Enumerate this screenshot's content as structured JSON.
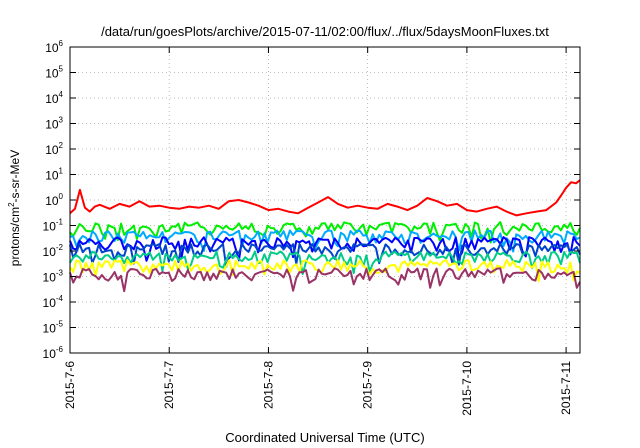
{
  "chart_data": {
    "type": "line",
    "title": "/data/run/goesPlots/archive/2015-07-11/02:00/flux/../flux/5daysMoonFluxes.txt",
    "xlabel": "Coordinated Universal Time (UTC)",
    "ylabel_parts": [
      "protons/cm",
      "2",
      "-s-sr-MeV"
    ],
    "y_scale": "log",
    "ylim": [
      1e-06,
      1000000.0
    ],
    "y_ticks": [
      {
        "value": 1e-06,
        "base": "10",
        "exp": "-6"
      },
      {
        "value": 1e-05,
        "base": "10",
        "exp": "-5"
      },
      {
        "value": 0.0001,
        "base": "10",
        "exp": "-4"
      },
      {
        "value": 0.001,
        "base": "10",
        "exp": "-3"
      },
      {
        "value": 0.01,
        "base": "10",
        "exp": "-2"
      },
      {
        "value": 0.1,
        "base": "10",
        "exp": "-1"
      },
      {
        "value": 1,
        "base": "10",
        "exp": "0"
      },
      {
        "value": 10,
        "base": "10",
        "exp": "1"
      },
      {
        "value": 100,
        "base": "10",
        "exp": "2"
      },
      {
        "value": 1000,
        "base": "10",
        "exp": "3"
      },
      {
        "value": 10000,
        "base": "10",
        "exp": "4"
      },
      {
        "value": 100000,
        "base": "10",
        "exp": "5"
      },
      {
        "value": 1000000,
        "base": "10",
        "exp": "6"
      }
    ],
    "x_day_range": [
      0,
      5.14
    ],
    "x_ticks": [
      {
        "day": 0,
        "label": "2015-7-6"
      },
      {
        "day": 1,
        "label": "2015-7-7"
      },
      {
        "day": 2,
        "label": "2015-7-8"
      },
      {
        "day": 3,
        "label": "2015-7-9"
      },
      {
        "day": 4,
        "label": "2015-7-10"
      },
      {
        "day": 5,
        "label": "2015-7-11"
      }
    ],
    "grid": true,
    "series": [
      {
        "color": "#ff0000",
        "x": [
          0,
          0.05,
          0.1,
          0.15,
          0.2,
          0.25,
          0.3,
          0.4,
          0.5,
          0.6,
          0.7,
          0.8,
          0.9,
          1.0,
          1.1,
          1.2,
          1.3,
          1.4,
          1.5,
          1.6,
          1.7,
          1.8,
          1.9,
          2.0,
          2.1,
          2.2,
          2.3,
          2.4,
          2.5,
          2.6,
          2.7,
          2.8,
          2.9,
          3.0,
          3.1,
          3.2,
          3.3,
          3.4,
          3.5,
          3.6,
          3.7,
          3.8,
          3.9,
          4.0,
          4.1,
          4.2,
          4.3,
          4.4,
          4.5,
          4.6,
          4.7,
          4.8,
          4.9,
          4.95,
          5.0,
          5.05,
          5.1,
          5.14
        ],
        "y": [
          0.3,
          0.45,
          2.5,
          0.5,
          0.35,
          0.55,
          0.65,
          0.45,
          0.7,
          0.55,
          0.9,
          0.55,
          0.6,
          0.5,
          0.45,
          0.55,
          0.5,
          0.6,
          0.45,
          0.9,
          1.0,
          0.8,
          0.6,
          0.4,
          0.45,
          0.35,
          0.3,
          0.5,
          0.8,
          1.3,
          0.7,
          0.5,
          0.6,
          0.5,
          0.45,
          0.7,
          0.55,
          0.4,
          0.6,
          1.2,
          0.9,
          0.6,
          0.7,
          0.4,
          0.35,
          0.45,
          0.55,
          0.35,
          0.25,
          0.3,
          0.35,
          0.4,
          0.8,
          1.5,
          3.0,
          5.0,
          4.5,
          6.0
        ]
      },
      {
        "color": "#00ee00",
        "level": 0.085
      },
      {
        "color": "#00aaff",
        "level": 0.04
      },
      {
        "color": "#0000ff",
        "level": 0.022
      },
      {
        "color": "#0044cc",
        "level": 0.012
      },
      {
        "color": "#00cc88",
        "level": 0.006
      },
      {
        "color": "#ffff00",
        "level": 0.0028
      },
      {
        "color": "#993366",
        "level": 0.0013
      }
    ]
  }
}
